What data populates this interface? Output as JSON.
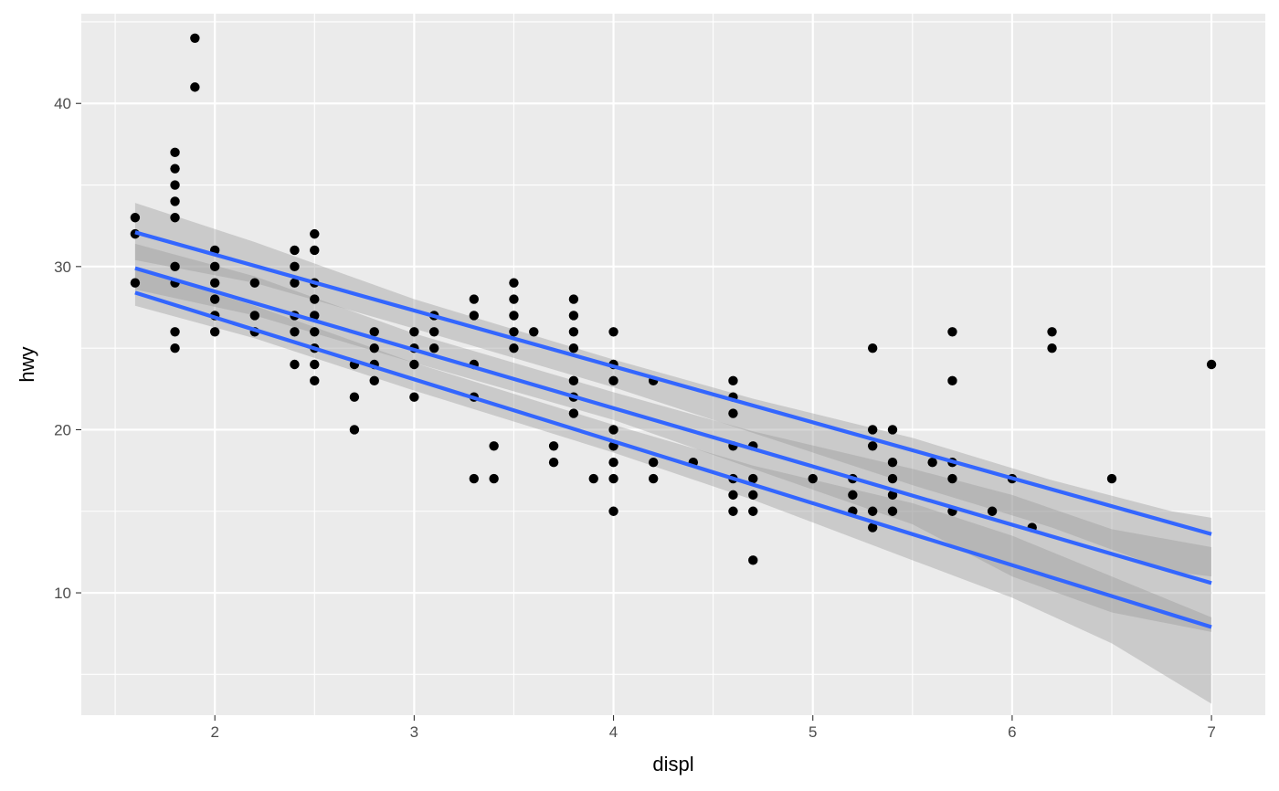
{
  "chart_data": {
    "type": "scatter",
    "title": "",
    "xlabel": "displ",
    "ylabel": "hwy",
    "xlim": [
      1.33,
      7.27
    ],
    "ylim": [
      2.5,
      45.5
    ],
    "x_ticks": [
      2,
      3,
      4,
      5,
      6,
      7
    ],
    "y_ticks": [
      10,
      20,
      30,
      40
    ],
    "grid": true,
    "legend": "none",
    "colors": {
      "panel": "#ebebeb",
      "grid": "#ffffff",
      "points": "#000000",
      "lines": "#3366ff",
      "ribbon": "#999999"
    },
    "points": [
      [
        1.6,
        33
      ],
      [
        1.6,
        32
      ],
      [
        1.6,
        29
      ],
      [
        1.8,
        37
      ],
      [
        1.8,
        36
      ],
      [
        1.8,
        35
      ],
      [
        1.8,
        34
      ],
      [
        1.8,
        33
      ],
      [
        1.8,
        30
      ],
      [
        1.8,
        29
      ],
      [
        1.8,
        26
      ],
      [
        1.8,
        25
      ],
      [
        1.9,
        44
      ],
      [
        1.9,
        41
      ],
      [
        2.0,
        31
      ],
      [
        2.0,
        30
      ],
      [
        2.0,
        29
      ],
      [
        2.0,
        28
      ],
      [
        2.0,
        27
      ],
      [
        2.0,
        26
      ],
      [
        2.2,
        29
      ],
      [
        2.2,
        27
      ],
      [
        2.2,
        26
      ],
      [
        2.4,
        31
      ],
      [
        2.4,
        30
      ],
      [
        2.4,
        29
      ],
      [
        2.4,
        27
      ],
      [
        2.4,
        26
      ],
      [
        2.4,
        24
      ],
      [
        2.5,
        32
      ],
      [
        2.5,
        31
      ],
      [
        2.5,
        29
      ],
      [
        2.5,
        28
      ],
      [
        2.5,
        27
      ],
      [
        2.5,
        26
      ],
      [
        2.5,
        25
      ],
      [
        2.5,
        24
      ],
      [
        2.5,
        23
      ],
      [
        2.7,
        24
      ],
      [
        2.7,
        22
      ],
      [
        2.7,
        20
      ],
      [
        2.8,
        26
      ],
      [
        2.8,
        25
      ],
      [
        2.8,
        24
      ],
      [
        2.8,
        23
      ],
      [
        3.0,
        26
      ],
      [
        3.0,
        25
      ],
      [
        3.0,
        24
      ],
      [
        3.0,
        22
      ],
      [
        3.1,
        27
      ],
      [
        3.1,
        26
      ],
      [
        3.1,
        25
      ],
      [
        3.3,
        28
      ],
      [
        3.3,
        27
      ],
      [
        3.3,
        24
      ],
      [
        3.3,
        22
      ],
      [
        3.3,
        17
      ],
      [
        3.4,
        19
      ],
      [
        3.4,
        17
      ],
      [
        3.5,
        29
      ],
      [
        3.5,
        28
      ],
      [
        3.5,
        27
      ],
      [
        3.5,
        26
      ],
      [
        3.5,
        25
      ],
      [
        3.6,
        26
      ],
      [
        3.7,
        19
      ],
      [
        3.7,
        18
      ],
      [
        3.8,
        28
      ],
      [
        3.8,
        27
      ],
      [
        3.8,
        26
      ],
      [
        3.8,
        25
      ],
      [
        3.8,
        23
      ],
      [
        3.8,
        22
      ],
      [
        3.8,
        21
      ],
      [
        3.9,
        17
      ],
      [
        4.0,
        26
      ],
      [
        4.0,
        24
      ],
      [
        4.0,
        23
      ],
      [
        4.0,
        20
      ],
      [
        4.0,
        19
      ],
      [
        4.0,
        18
      ],
      [
        4.0,
        17
      ],
      [
        4.0,
        15
      ],
      [
        4.2,
        23
      ],
      [
        4.2,
        18
      ],
      [
        4.2,
        17
      ],
      [
        4.4,
        18
      ],
      [
        4.6,
        23
      ],
      [
        4.6,
        22
      ],
      [
        4.6,
        21
      ],
      [
        4.6,
        19
      ],
      [
        4.6,
        17
      ],
      [
        4.6,
        16
      ],
      [
        4.6,
        15
      ],
      [
        4.7,
        19
      ],
      [
        4.7,
        17
      ],
      [
        4.7,
        16
      ],
      [
        4.7,
        15
      ],
      [
        4.7,
        12
      ],
      [
        5.0,
        17
      ],
      [
        5.2,
        17
      ],
      [
        5.2,
        16
      ],
      [
        5.2,
        15
      ],
      [
        5.3,
        25
      ],
      [
        5.3,
        20
      ],
      [
        5.3,
        19
      ],
      [
        5.3,
        15
      ],
      [
        5.3,
        14
      ],
      [
        5.4,
        20
      ],
      [
        5.4,
        18
      ],
      [
        5.4,
        17
      ],
      [
        5.4,
        16
      ],
      [
        5.4,
        15
      ],
      [
        5.6,
        18
      ],
      [
        5.7,
        26
      ],
      [
        5.7,
        23
      ],
      [
        5.7,
        18
      ],
      [
        5.7,
        17
      ],
      [
        5.7,
        15
      ],
      [
        5.9,
        15
      ],
      [
        6.0,
        17
      ],
      [
        6.1,
        14
      ],
      [
        6.2,
        26
      ],
      [
        6.2,
        25
      ],
      [
        6.5,
        17
      ],
      [
        7.0,
        24
      ]
    ],
    "series": [
      {
        "values": [
          [
            1.6,
            32.1
          ],
          [
            7.0,
            13.6
          ]
        ],
        "band": [
          [
            1.6,
            30.4,
            33.9
          ],
          [
            2.2,
            29.0,
            31.5
          ],
          [
            3.0,
            26.2,
            28.0
          ],
          [
            4.0,
            22.6,
            24.3
          ],
          [
            4.7,
            19.8,
            21.9
          ],
          [
            5.5,
            16.6,
            19.5
          ],
          [
            6.2,
            14.0,
            16.9
          ],
          [
            6.8,
            11.3,
            15.0
          ],
          [
            7.0,
            11.0,
            14.6
          ]
        ]
      },
      {
        "values": [
          [
            1.6,
            29.9
          ],
          [
            7.0,
            10.6
          ]
        ],
        "band": [
          [
            1.6,
            28.6,
            31.4
          ],
          [
            2.2,
            27.0,
            29.4
          ],
          [
            3.0,
            24.1,
            25.9
          ],
          [
            4.0,
            20.6,
            22.3
          ],
          [
            4.7,
            17.6,
            19.9
          ],
          [
            5.5,
            14.2,
            17.6
          ],
          [
            6.0,
            11.0,
            16.0
          ],
          [
            6.5,
            8.8,
            13.9
          ],
          [
            7.0,
            7.6,
            12.8
          ]
        ]
      },
      {
        "values": [
          [
            1.6,
            28.4
          ],
          [
            7.0,
            7.9
          ]
        ],
        "band": [
          [
            1.6,
            27.6,
            29.8
          ],
          [
            2.2,
            25.6,
            27.6
          ],
          [
            3.0,
            22.4,
            24.1
          ],
          [
            4.0,
            18.6,
            20.3
          ],
          [
            4.7,
            15.7,
            17.8
          ],
          [
            5.5,
            12.0,
            15.5
          ],
          [
            6.0,
            9.7,
            13.5
          ],
          [
            6.5,
            6.9,
            11.0
          ],
          [
            7.0,
            3.2,
            8.5
          ]
        ]
      }
    ]
  }
}
